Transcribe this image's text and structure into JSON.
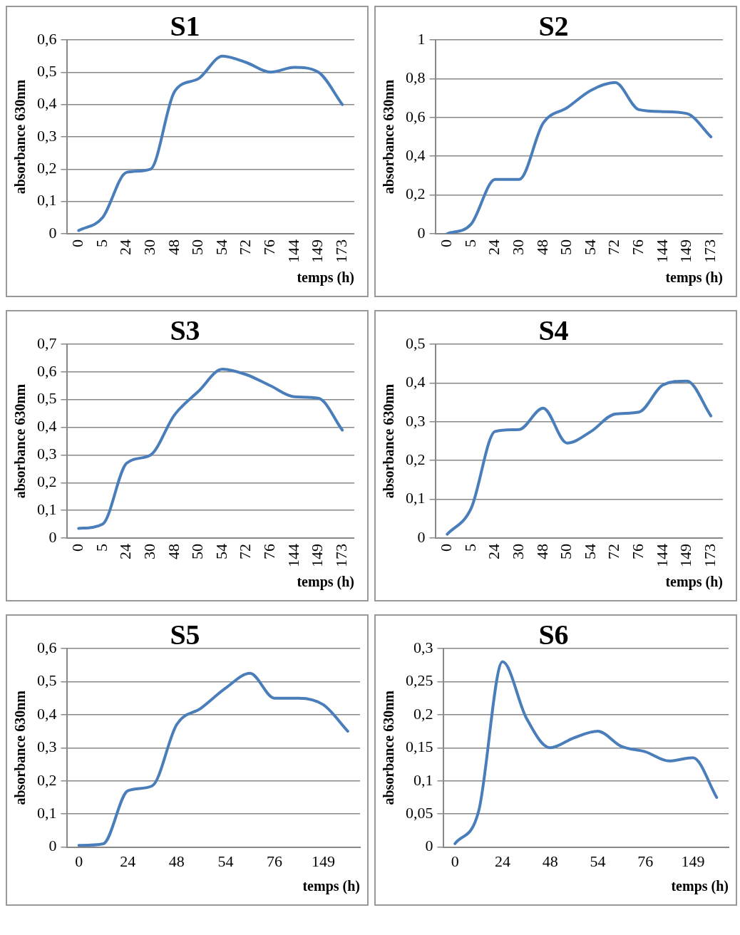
{
  "chart_data": [
    {
      "type": "line",
      "title": "S1",
      "xlabel": "temps (h)",
      "ylabel": "absorbance 630nm",
      "categories": [
        "0",
        "5",
        "24",
        "30",
        "48",
        "50",
        "54",
        "72",
        "76",
        "144",
        "149",
        "173"
      ],
      "color": "#4a7ebb",
      "values": [
        0.01,
        0.05,
        0.19,
        0.2,
        0.44,
        0.48,
        0.55,
        0.53,
        0.5,
        0.515,
        0.5,
        0.4
      ],
      "ylim": [
        0,
        0.6
      ],
      "yticks": [
        {
          "value": 0,
          "label": "0"
        },
        {
          "value": 0.1,
          "label": "0,1"
        },
        {
          "value": 0.2,
          "label": "0,2"
        },
        {
          "value": 0.3,
          "label": "0,3"
        },
        {
          "value": 0.4,
          "label": "0,4"
        },
        {
          "value": 0.5,
          "label": "0,5"
        },
        {
          "value": 0.6,
          "label": "0,6"
        }
      ],
      "grid": "y",
      "marker": "none",
      "legend": false
    },
    {
      "type": "line",
      "title": "S2",
      "xlabel": "temps (h)",
      "ylabel": "absorbance 630nm",
      "categories": [
        "0",
        "5",
        "24",
        "30",
        "48",
        "50",
        "54",
        "72",
        "76",
        "144",
        "149",
        "173"
      ],
      "color": "#4a7ebb",
      "values": [
        0.0,
        0.05,
        0.28,
        0.28,
        0.57,
        0.65,
        0.74,
        0.78,
        0.64,
        0.63,
        0.62,
        0.5
      ],
      "ylim": [
        0,
        1
      ],
      "yticks": [
        {
          "value": 0,
          "label": "0"
        },
        {
          "value": 0.2,
          "label": "0,2"
        },
        {
          "value": 0.4,
          "label": "0,4"
        },
        {
          "value": 0.6,
          "label": "0,6"
        },
        {
          "value": 0.8,
          "label": "0,8"
        },
        {
          "value": 1,
          "label": "1"
        }
      ],
      "grid": "y",
      "marker": "none",
      "legend": false
    },
    {
      "type": "line",
      "title": "S3",
      "xlabel": "temps (h)",
      "ylabel": "absorbance 630nm",
      "categories": [
        "0",
        "5",
        "24",
        "30",
        "48",
        "50",
        "54",
        "72",
        "76",
        "144",
        "149",
        "173"
      ],
      "color": "#4a7ebb",
      "values": [
        0.035,
        0.05,
        0.27,
        0.3,
        0.445,
        0.53,
        0.61,
        0.59,
        0.55,
        0.51,
        0.505,
        0.39
      ],
      "ylim": [
        0,
        0.7
      ],
      "yticks": [
        {
          "value": 0,
          "label": "0"
        },
        {
          "value": 0.1,
          "label": "0,1"
        },
        {
          "value": 0.2,
          "label": "0,2"
        },
        {
          "value": 0.3,
          "label": "0,3"
        },
        {
          "value": 0.4,
          "label": "0,4"
        },
        {
          "value": 0.5,
          "label": "0,5"
        },
        {
          "value": 0.6,
          "label": "0,6"
        },
        {
          "value": 0.7,
          "label": "0,7"
        }
      ],
      "grid": "y",
      "marker": "none",
      "legend": false
    },
    {
      "type": "line",
      "title": "S4",
      "xlabel": "temps (h)",
      "ylabel": "absorbance 630nm",
      "categories": [
        "0",
        "5",
        "24",
        "30",
        "48",
        "50",
        "54",
        "72",
        "76",
        "144",
        "149",
        "173"
      ],
      "color": "#4a7ebb",
      "values": [
        0.01,
        0.077,
        0.275,
        0.28,
        0.335,
        0.245,
        0.275,
        0.32,
        0.325,
        0.395,
        0.405,
        0.315
      ],
      "ylim": [
        0,
        0.5
      ],
      "yticks": [
        {
          "value": 0,
          "label": "0"
        },
        {
          "value": 0.1,
          "label": "0,1"
        },
        {
          "value": 0.2,
          "label": "0,2"
        },
        {
          "value": 0.3,
          "label": "0,3"
        },
        {
          "value": 0.4,
          "label": "0,4"
        },
        {
          "value": 0.5,
          "label": "0,5"
        }
      ],
      "grid": "y",
      "marker": "none",
      "legend": false
    },
    {
      "type": "line",
      "title": "S5",
      "xlabel": "temps (h)",
      "ylabel": "absorbance 630nm",
      "categories": [
        "0",
        null,
        "24",
        null,
        "48",
        null,
        "54",
        null,
        "76",
        null,
        "149",
        null
      ],
      "color": "#4a7ebb",
      "values": [
        0.005,
        0.01,
        0.17,
        0.185,
        0.37,
        0.42,
        0.48,
        0.525,
        0.45,
        0.45,
        0.43,
        0.35
      ],
      "ylim": [
        0,
        0.6
      ],
      "yticks": [
        {
          "value": 0,
          "label": "0"
        },
        {
          "value": 0.1,
          "label": "0,1"
        },
        {
          "value": 0.2,
          "label": "0,2"
        },
        {
          "value": 0.3,
          "label": "0,3"
        },
        {
          "value": 0.4,
          "label": "0,4"
        },
        {
          "value": 0.5,
          "label": "0,5"
        },
        {
          "value": 0.6,
          "label": "0,6"
        }
      ],
      "grid": "y",
      "marker": "none",
      "legend": false
    },
    {
      "type": "line",
      "title": "S6",
      "xlabel": "temps (h)",
      "ylabel": "absorbance 630nm",
      "categories": [
        "0",
        null,
        "24",
        null,
        "48",
        null,
        "54",
        null,
        "76",
        null,
        "149",
        null
      ],
      "color": "#4a7ebb",
      "values": [
        0.005,
        0.055,
        0.28,
        0.195,
        0.15,
        0.165,
        0.175,
        0.152,
        0.144,
        0.13,
        0.135,
        0.075
      ],
      "ylim": [
        0,
        0.3
      ],
      "yticks": [
        {
          "value": 0,
          "label": "0"
        },
        {
          "value": 0.05,
          "label": "0,05"
        },
        {
          "value": 0.1,
          "label": "0,1"
        },
        {
          "value": 0.15,
          "label": "0,15"
        },
        {
          "value": 0.2,
          "label": "0,2"
        },
        {
          "value": 0.25,
          "label": "0,25"
        },
        {
          "value": 0.3,
          "label": "0,3"
        }
      ],
      "grid": "y",
      "marker": "none",
      "legend": false
    }
  ]
}
